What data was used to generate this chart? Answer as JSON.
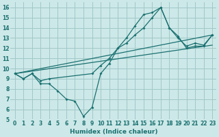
{
  "xlabel": "Humidex (Indice chaleur)",
  "bg_color": "#cde8e8",
  "grid_color": "#a0c8c8",
  "line_color": "#1a7070",
  "xlim": [
    -0.5,
    23.5
  ],
  "ylim": [
    5,
    16.5
  ],
  "xticks": [
    0,
    1,
    2,
    3,
    4,
    5,
    6,
    7,
    8,
    9,
    10,
    11,
    12,
    13,
    14,
    15,
    16,
    17,
    18,
    19,
    20,
    21,
    22,
    23
  ],
  "yticks": [
    5,
    6,
    7,
    8,
    9,
    10,
    11,
    12,
    13,
    14,
    15,
    16
  ],
  "line1": {
    "x": [
      0,
      1,
      2,
      3,
      4,
      5,
      6,
      7,
      8,
      9,
      10,
      11,
      12,
      13,
      14,
      15,
      16,
      17,
      18,
      19,
      20,
      21,
      22,
      23
    ],
    "y": [
      9.5,
      9.0,
      9.5,
      8.5,
      8.5,
      7.8,
      7.0,
      6.8,
      5.3,
      6.2,
      9.5,
      10.5,
      12.0,
      13.0,
      14.2,
      15.3,
      15.5,
      16.0,
      14.0,
      13.2,
      12.0,
      12.2,
      12.2,
      13.3
    ]
  },
  "line2": {
    "x": [
      0,
      1,
      2,
      3,
      4,
      9,
      10,
      11,
      12,
      13,
      14,
      15,
      16,
      17,
      18,
      19,
      20,
      21,
      22,
      23
    ],
    "y": [
      9.5,
      9.0,
      9.5,
      8.8,
      9.0,
      9.5,
      10.3,
      11.0,
      12.0,
      12.5,
      13.3,
      14.0,
      15.0,
      16.0,
      14.0,
      13.0,
      12.2,
      12.5,
      12.3,
      13.3
    ]
  },
  "line3_x": [
    0,
    23
  ],
  "line3_y": [
    9.5,
    12.3
  ],
  "line4_x": [
    0,
    23
  ],
  "line4_y": [
    9.5,
    13.3
  ]
}
